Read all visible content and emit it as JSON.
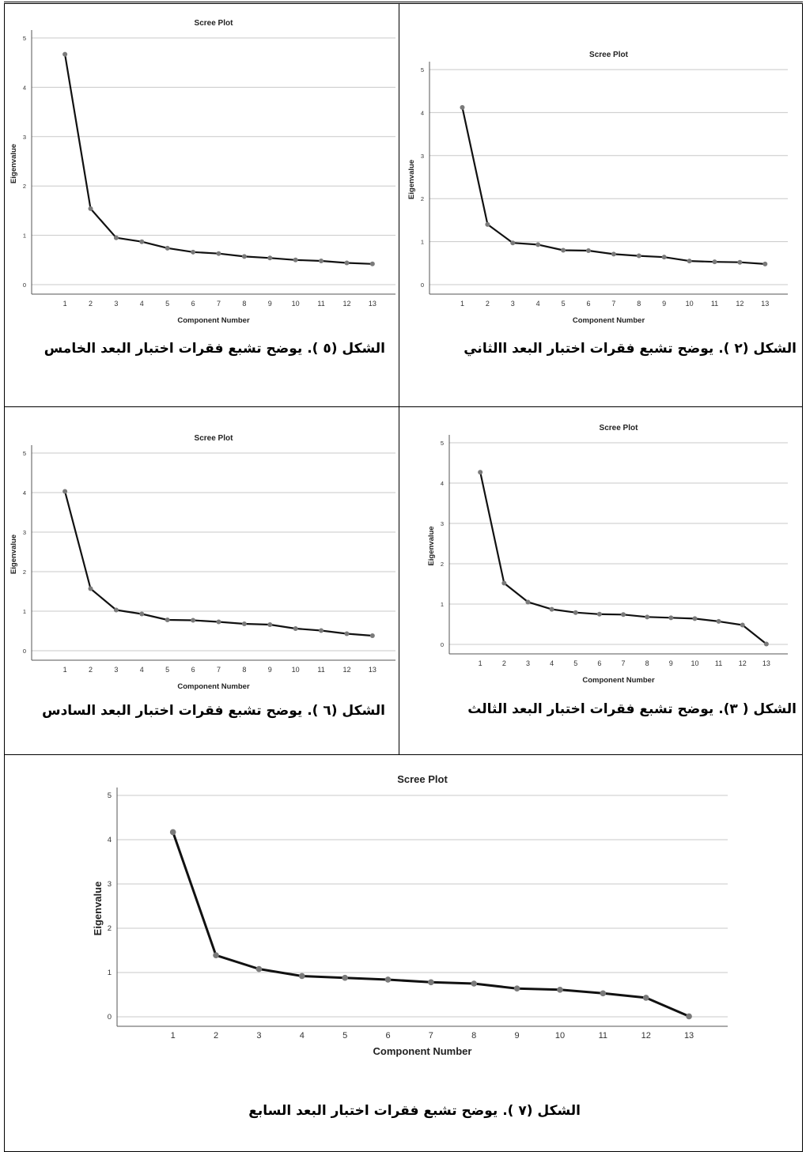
{
  "colors": {
    "line": "#111111",
    "point": "#7a7a7a",
    "grid": "#c8c8c8",
    "axis": "#555555"
  },
  "chart_data": [
    {
      "type": "line",
      "title": "Scree Plot",
      "xlabel": "Component Number",
      "ylabel": "Eigenvalue",
      "x": [
        1,
        2,
        3,
        4,
        5,
        6,
        7,
        8,
        9,
        10,
        11,
        12,
        13
      ],
      "y_ticks": [
        0,
        1,
        2,
        3,
        4,
        5
      ],
      "ylim": [
        0,
        5
      ],
      "grid": true,
      "series": [
        {
          "values": [
            4.67,
            1.54,
            0.95,
            0.87,
            0.74,
            0.66,
            0.63,
            0.57,
            0.54,
            0.5,
            0.48,
            0.44,
            0.42
          ]
        }
      ]
    },
    {
      "type": "line",
      "title": "Scree Plot",
      "xlabel": "Component Number",
      "ylabel": "Eigenvalue",
      "x": [
        1,
        2,
        3,
        4,
        5,
        6,
        7,
        8,
        9,
        10,
        11,
        12,
        13
      ],
      "y_ticks": [
        0,
        1,
        2,
        3,
        4,
        5
      ],
      "ylim": [
        0,
        5
      ],
      "grid": true,
      "series": [
        {
          "values": [
            4.12,
            1.4,
            0.97,
            0.93,
            0.8,
            0.79,
            0.71,
            0.67,
            0.64,
            0.55,
            0.53,
            0.52,
            0.48
          ]
        }
      ]
    },
    {
      "type": "line",
      "title": "Scree Plot",
      "xlabel": "Component Number",
      "ylabel": "Eigenvalue",
      "x": [
        1,
        2,
        3,
        4,
        5,
        6,
        7,
        8,
        9,
        10,
        11,
        12,
        13
      ],
      "y_ticks": [
        0,
        1,
        2,
        3,
        4,
        5
      ],
      "ylim": [
        0,
        5
      ],
      "grid": true,
      "series": [
        {
          "values": [
            4.03,
            1.57,
            1.03,
            0.93,
            0.78,
            0.77,
            0.73,
            0.68,
            0.66,
            0.56,
            0.51,
            0.43,
            0.38
          ]
        }
      ]
    },
    {
      "type": "line",
      "title": "Scree Plot",
      "xlabel": "Component Number",
      "ylabel": "Eigenvalue",
      "x": [
        1,
        2,
        3,
        4,
        5,
        6,
        7,
        8,
        9,
        10,
        11,
        12,
        13
      ],
      "y_ticks": [
        0,
        1,
        2,
        3,
        4,
        5
      ],
      "ylim": [
        0,
        5
      ],
      "grid": true,
      "series": [
        {
          "values": [
            4.27,
            1.52,
            1.05,
            0.87,
            0.79,
            0.75,
            0.74,
            0.68,
            0.66,
            0.64,
            0.57,
            0.48,
            0.01
          ]
        }
      ]
    },
    {
      "type": "line",
      "title": "Scree Plot",
      "xlabel": "Component Number",
      "ylabel": "Eigenvalue",
      "x": [
        1,
        2,
        3,
        4,
        5,
        6,
        7,
        8,
        9,
        10,
        11,
        12,
        13
      ],
      "y_ticks": [
        0,
        1,
        2,
        3,
        4,
        5
      ],
      "ylim": [
        0,
        5
      ],
      "grid": true,
      "series": [
        {
          "values": [
            4.17,
            1.39,
            1.08,
            0.92,
            0.88,
            0.84,
            0.78,
            0.75,
            0.64,
            0.61,
            0.53,
            0.43,
            0.01
          ]
        }
      ]
    }
  ],
  "captions": {
    "c5": "الشكل (٥ ). يوضح تشبع فقرات اختبار البعد الخامس",
    "c2": "الشكل (٢ ). يوضح تشبع فقرات اختبار البعد االثاني",
    "c6": "الشكل (٦ ). يوضح تشبع فقرات اختبار البعد السادس",
    "c3": "الشكل ( ٣). يوضح تشبع فقرات اختبار البعد الثالث",
    "c7": "الشكل (٧ ). يوضح تشبع فقرات اختبار البعد السابع"
  }
}
